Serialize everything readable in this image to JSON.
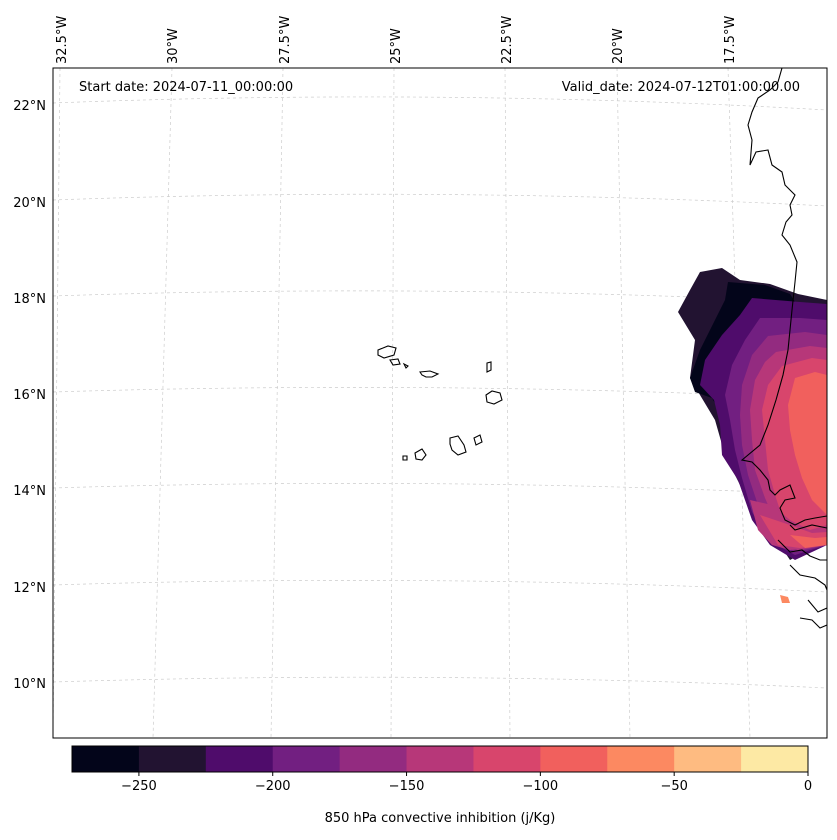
{
  "map": {
    "start_label": "Start date: 2024-07-11_00:00:00",
    "valid_label": "Valid_date: 2024-07-12T01:00:00.00",
    "lon_ticks": [
      "32.5°W",
      "30°W",
      "27.5°W",
      "25°W",
      "22.5°W",
      "20°W",
      "17.5°W"
    ],
    "lat_ticks": [
      "22°N",
      "20°N",
      "18°N",
      "16°N",
      "14°N",
      "12°N",
      "10°N"
    ],
    "variable": "850 hPa convective inhibition",
    "units": "j/Kg"
  },
  "colorbar": {
    "label": "850 hPa convective inhibition (j/Kg)",
    "tick_labels": [
      "−250",
      "−200",
      "−150",
      "−100",
      "−50",
      "0"
    ],
    "tick_values": [
      -250,
      -200,
      -150,
      -100,
      -50,
      0
    ],
    "range": [
      -275,
      0
    ],
    "levels": [
      -275,
      -250,
      -225,
      -200,
      -175,
      -150,
      -125,
      -100,
      -75,
      -50,
      -25,
      0
    ],
    "colors": [
      "#03051a",
      "#221331",
      "#4f0c6b",
      "#721f81",
      "#932b80",
      "#b73779",
      "#d8456c",
      "#f1605d",
      "#fc8961",
      "#febb81",
      "#fde9a4"
    ]
  }
}
